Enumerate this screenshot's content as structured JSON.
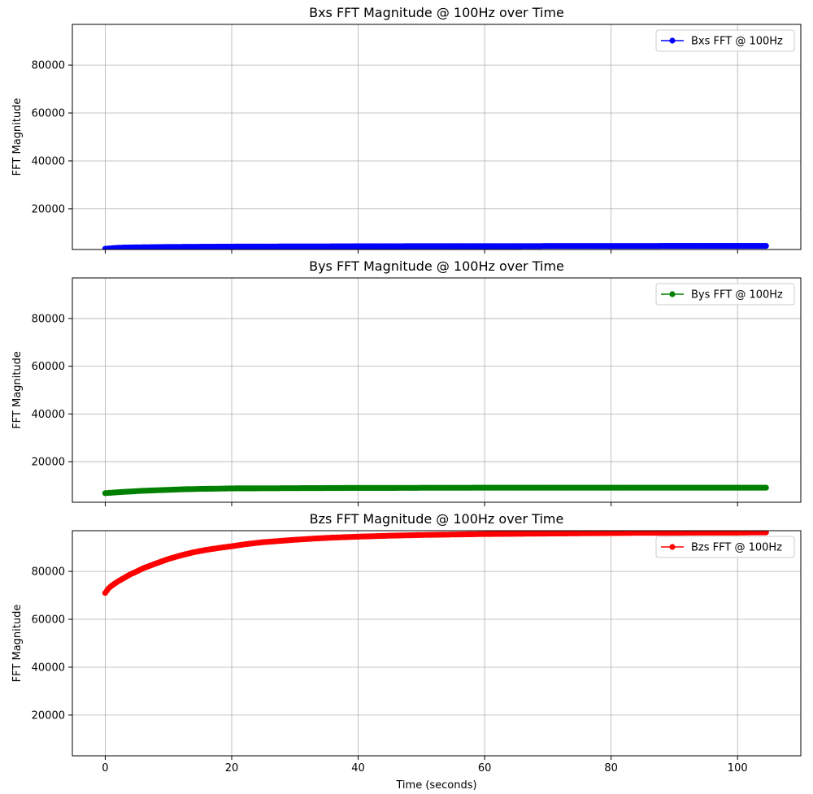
{
  "chart_data": [
    {
      "type": "line",
      "title": "Bxs FFT Magnitude @ 100Hz over Time",
      "xlabel": "",
      "ylabel": "FFT Magnitude",
      "xlim": [
        -5.2,
        110.0
      ],
      "ylim": [
        3000,
        97000
      ],
      "x_ticks": [
        0,
        20,
        40,
        60,
        80,
        100
      ],
      "x_tick_labels": [],
      "y_ticks": [
        20000,
        40000,
        60000,
        80000
      ],
      "y_tick_labels": [
        "20000",
        "40000",
        "60000",
        "80000"
      ],
      "grid": true,
      "legend": "top-right",
      "series": [
        {
          "name": "Bxs FFT @ 100Hz",
          "color": "#0000ff",
          "x": [
            0,
            1,
            2,
            3,
            5,
            8,
            12,
            16,
            20,
            25,
            30,
            35,
            40,
            45,
            50,
            55,
            60,
            65,
            70,
            75,
            80,
            85,
            90,
            95,
            100,
            104.5
          ],
          "values": [
            3300,
            3500,
            3700,
            3800,
            3900,
            4000,
            4100,
            4150,
            4200,
            4250,
            4300,
            4300,
            4350,
            4350,
            4400,
            4400,
            4400,
            4400,
            4450,
            4450,
            4450,
            4450,
            4500,
            4500,
            4500,
            4500
          ]
        }
      ]
    },
    {
      "type": "line",
      "title": "Bys FFT Magnitude @ 100Hz over Time",
      "xlabel": "",
      "ylabel": "FFT Magnitude",
      "xlim": [
        -5.2,
        110.0
      ],
      "ylim": [
        3000,
        97000
      ],
      "x_ticks": [
        0,
        20,
        40,
        60,
        80,
        100
      ],
      "x_tick_labels": [],
      "y_ticks": [
        20000,
        40000,
        60000,
        80000
      ],
      "y_tick_labels": [
        "20000",
        "40000",
        "60000",
        "80000"
      ],
      "grid": true,
      "legend": "top-right",
      "series": [
        {
          "name": "Bys FFT @ 100Hz",
          "color": "#008000",
          "x": [
            0,
            1,
            2,
            4,
            6,
            8,
            10,
            12,
            15,
            18,
            20,
            25,
            30,
            35,
            40,
            45,
            50,
            55,
            60,
            65,
            70,
            75,
            80,
            85,
            90,
            95,
            100,
            104.5
          ],
          "values": [
            6800,
            7000,
            7200,
            7500,
            7800,
            8000,
            8200,
            8400,
            8600,
            8700,
            8800,
            8850,
            8900,
            8950,
            9000,
            9000,
            9050,
            9050,
            9100,
            9100,
            9100,
            9100,
            9100,
            9100,
            9100,
            9100,
            9100,
            9100
          ]
        }
      ]
    },
    {
      "type": "line",
      "title": "Bzs FFT Magnitude @ 100Hz over Time",
      "xlabel": "Time (seconds)",
      "ylabel": "FFT Magnitude",
      "xlim": [
        -5.2,
        110.0
      ],
      "ylim": [
        3000,
        97000
      ],
      "x_ticks": [
        0,
        20,
        40,
        60,
        80,
        100
      ],
      "x_tick_labels": [
        "0",
        "20",
        "40",
        "60",
        "80",
        "100"
      ],
      "y_ticks": [
        20000,
        40000,
        60000,
        80000
      ],
      "y_tick_labels": [
        "20000",
        "40000",
        "60000",
        "80000"
      ],
      "grid": true,
      "legend": "top-right",
      "series": [
        {
          "name": "Bzs FFT @ 100Hz",
          "color": "#ff0000",
          "x": [
            0,
            0.5,
            1,
            2,
            3,
            4,
            5,
            6,
            7,
            8,
            10,
            12,
            14,
            16,
            18,
            20,
            22,
            25,
            28,
            30,
            33,
            36,
            40,
            45,
            50,
            55,
            60,
            65,
            70,
            75,
            80,
            85,
            90,
            95,
            100,
            104.5
          ],
          "values": [
            71000,
            72800,
            74000,
            75800,
            77300,
            78800,
            80000,
            81300,
            82300,
            83300,
            85200,
            86700,
            88000,
            89000,
            89800,
            90500,
            91300,
            92200,
            92800,
            93200,
            93700,
            94100,
            94500,
            94900,
            95200,
            95400,
            95600,
            95700,
            95800,
            95900,
            96000,
            96100,
            96100,
            96200,
            96200,
            96300
          ]
        }
      ]
    }
  ]
}
